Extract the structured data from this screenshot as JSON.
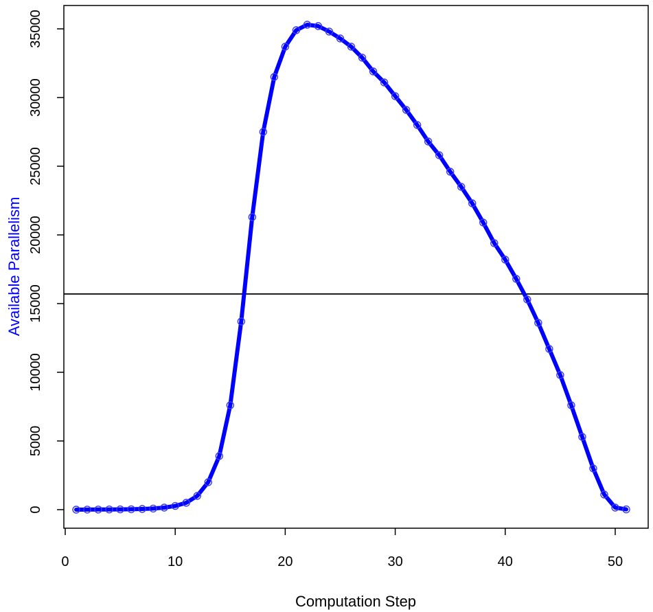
{
  "chart_data": {
    "type": "line",
    "xlabel": "Computation Step",
    "ylabel": "Available Parallelism",
    "xlim": [
      1,
      51
    ],
    "ylim": [
      0,
      35300
    ],
    "x_ticks": [
      0,
      10,
      20,
      30,
      40,
      50
    ],
    "y_ticks": [
      0,
      5000,
      10000,
      15000,
      20000,
      25000,
      30000,
      35000
    ],
    "x_tick_labels": [
      "0",
      "10",
      "20",
      "30",
      "40",
      "50"
    ],
    "y_tick_labels": [
      "0",
      "5000",
      "10000",
      "15000",
      "20000",
      "25000",
      "30000",
      "35000"
    ],
    "grid": false,
    "series": [
      {
        "color": "#0000ff",
        "markers": "open-circle",
        "x": [
          1,
          2,
          3,
          4,
          5,
          6,
          7,
          8,
          9,
          10,
          11,
          12,
          13,
          14,
          15,
          16,
          17,
          18,
          19,
          20,
          21,
          22,
          23,
          24,
          25,
          26,
          27,
          28,
          29,
          30,
          31,
          32,
          33,
          34,
          35,
          36,
          37,
          38,
          39,
          40,
          41,
          42,
          43,
          44,
          45,
          46,
          47,
          48,
          49,
          50,
          51
        ],
        "y": [
          0,
          5,
          10,
          15,
          20,
          30,
          50,
          80,
          150,
          270,
          500,
          1000,
          2000,
          3900,
          7600,
          13700,
          21300,
          27500,
          31500,
          33700,
          34900,
          35300,
          35200,
          34800,
          34300,
          33700,
          32900,
          31900,
          31100,
          30100,
          29100,
          28000,
          26800,
          25800,
          24600,
          23500,
          22300,
          20900,
          19400,
          18200,
          16800,
          15300,
          13600,
          11700,
          9800,
          7600,
          5300,
          3000,
          1100,
          150,
          20
        ]
      }
    ],
    "reference_lines": [
      {
        "orientation": "horizontal",
        "y": 15700,
        "color": "#000000"
      }
    ]
  }
}
